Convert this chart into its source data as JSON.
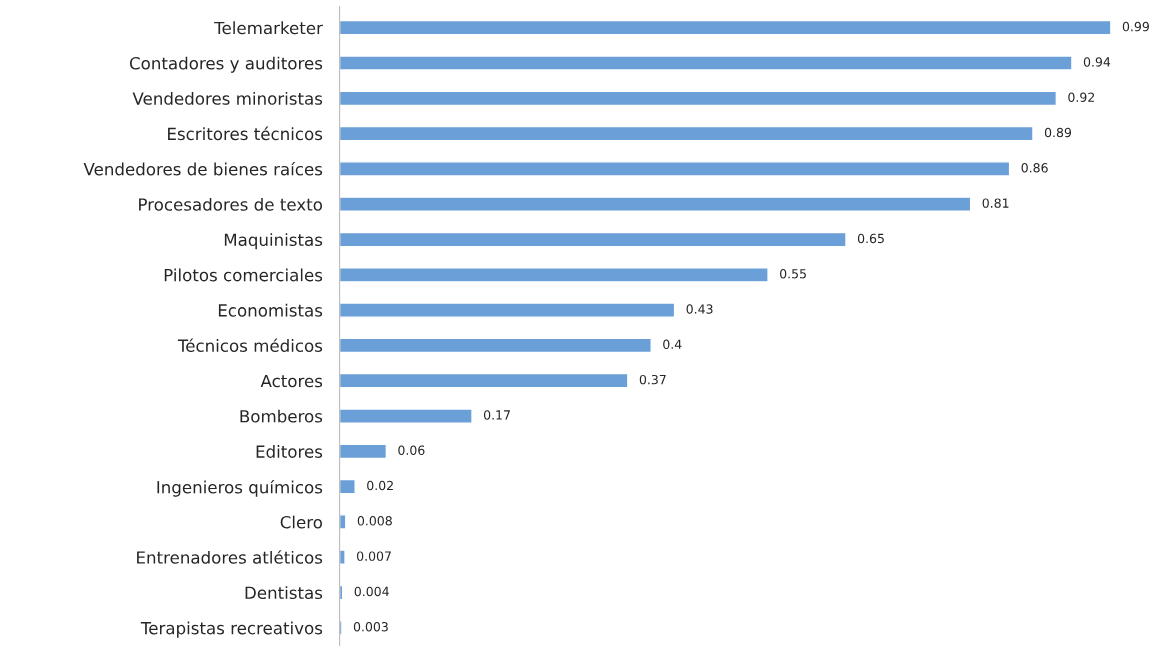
{
  "chart_data": {
    "type": "bar",
    "orientation": "horizontal",
    "categories": [
      "Telemarketer",
      "Contadores y auditores",
      "Vendedores minoristas",
      "Escritores técnicos",
      "Vendedores de bienes raíces",
      "Procesadores de texto",
      "Maquinistas",
      "Pilotos comerciales",
      "Economistas",
      "Técnicos médicos",
      "Actores",
      "Bomberos",
      "Editores",
      "Ingenieros químicos",
      "Clero",
      "Entrenadores atléticos",
      "Dentistas",
      "Terapistas recreativos"
    ],
    "values": [
      0.99,
      0.94,
      0.92,
      0.89,
      0.86,
      0.81,
      0.65,
      0.55,
      0.43,
      0.4,
      0.37,
      0.17,
      0.06,
      0.02,
      0.008,
      0.007,
      0.004,
      0.003
    ],
    "color": "#6a9fd8",
    "data_labels": true,
    "grid": false,
    "legend": false
  }
}
